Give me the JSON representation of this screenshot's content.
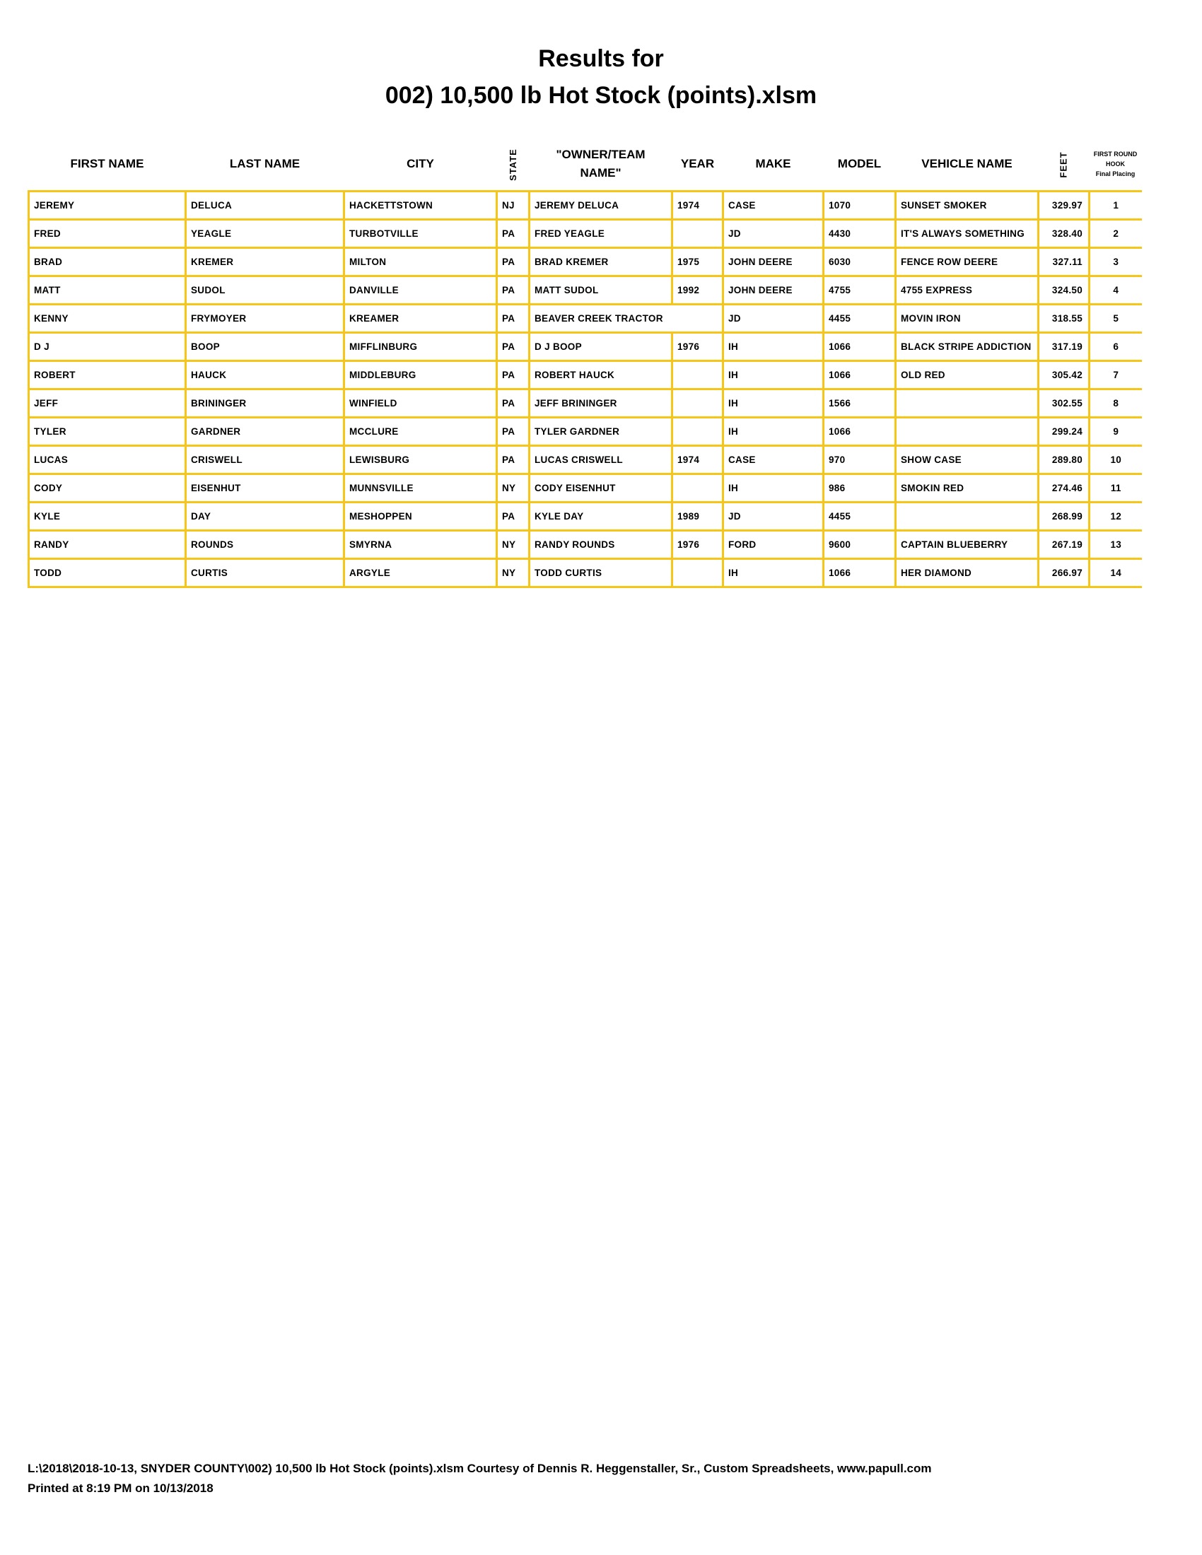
{
  "title_line1": "Results for",
  "title_line2": "002) 10,500 lb Hot Stock (points).xlsm",
  "columns": {
    "first": "FIRST NAME",
    "last": "LAST NAME",
    "city": "CITY",
    "state": "STATE",
    "owner_l1": "\"OWNER/TEAM",
    "owner_l2": "NAME\"",
    "year": "YEAR",
    "make": "MAKE",
    "model": "MODEL",
    "vehicle": "VEHICLE NAME",
    "feet": "FEET",
    "place_l1": "FIRST ROUND",
    "place_l2": "HOOK",
    "place_l3": "Final Placing"
  },
  "rows": [
    {
      "first": "JEREMY",
      "last": "DELUCA",
      "city": "HACKETTSTOWN",
      "state": "NJ",
      "owner": "JEREMY DELUCA",
      "year": "1974",
      "make": "CASE",
      "model": "1070",
      "vehicle": "SUNSET SMOKER",
      "feet": "329.97",
      "place": "1"
    },
    {
      "first": "FRED",
      "last": "YEAGLE",
      "city": "TURBOTVILLE",
      "state": "PA",
      "owner": "FRED YEAGLE",
      "year": "",
      "make": "JD",
      "model": "4430",
      "vehicle": "IT'S ALWAYS SOMETHING",
      "feet": "328.40",
      "place": "2"
    },
    {
      "first": "BRAD",
      "last": "KREMER",
      "city": "MILTON",
      "state": "PA",
      "owner": "BRAD KREMER",
      "year": "1975",
      "make": "JOHN DEERE",
      "model": "6030",
      "vehicle": "FENCE ROW DEERE",
      "feet": "327.11",
      "place": "3"
    },
    {
      "first": "MATT",
      "last": "SUDOL",
      "city": "DANVILLE",
      "state": "PA",
      "owner": "MATT SUDOL",
      "year": "1992",
      "make": "JOHN DEERE",
      "model": "4755",
      "vehicle": "4755 EXPRESS",
      "feet": "324.50",
      "place": "4"
    },
    {
      "first": "KENNY",
      "last": "FRYMOYER",
      "city": "KREAMER",
      "state": "PA",
      "owner": "BEAVER CREEK TRACTOR",
      "year": "",
      "make": "JD",
      "model": "4455",
      "vehicle": "MOVIN IRON",
      "feet": "318.55",
      "place": "5"
    },
    {
      "first": "D J",
      "last": "BOOP",
      "city": "MIFFLINBURG",
      "state": "PA",
      "owner": "D J BOOP",
      "year": "1976",
      "make": "IH",
      "model": "1066",
      "vehicle": "BLACK STRIPE ADDICTION",
      "feet": "317.19",
      "place": "6"
    },
    {
      "first": "ROBERT",
      "last": "HAUCK",
      "city": "MIDDLEBURG",
      "state": "PA",
      "owner": "ROBERT HAUCK",
      "year": "",
      "make": "IH",
      "model": "1066",
      "vehicle": "OLD RED",
      "feet": "305.42",
      "place": "7"
    },
    {
      "first": "JEFF",
      "last": "BRININGER",
      "city": "WINFIELD",
      "state": "PA",
      "owner": "JEFF BRININGER",
      "year": "",
      "make": "IH",
      "model": "1566",
      "vehicle": "",
      "feet": "302.55",
      "place": "8"
    },
    {
      "first": "TYLER",
      "last": "GARDNER",
      "city": "MCCLURE",
      "state": "PA",
      "owner": "TYLER GARDNER",
      "year": "",
      "make": "IH",
      "model": "1066",
      "vehicle": "",
      "feet": "299.24",
      "place": "9"
    },
    {
      "first": "LUCAS",
      "last": "CRISWELL",
      "city": "LEWISBURG",
      "state": "PA",
      "owner": "LUCAS CRISWELL",
      "year": "1974",
      "make": "CASE",
      "model": "970",
      "vehicle": "SHOW CASE",
      "feet": "289.80",
      "place": "10"
    },
    {
      "first": "CODY",
      "last": "EISENHUT",
      "city": "MUNNSVILLE",
      "state": "NY",
      "owner": "CODY EISENHUT",
      "year": "",
      "make": "IH",
      "model": "986",
      "vehicle": "SMOKIN RED",
      "feet": "274.46",
      "place": "11"
    },
    {
      "first": "KYLE",
      "last": "DAY",
      "city": "MESHOPPEN",
      "state": "PA",
      "owner": "KYLE DAY",
      "year": "1989",
      "make": "JD",
      "model": "4455",
      "vehicle": "",
      "feet": "268.99",
      "place": "12"
    },
    {
      "first": "RANDY",
      "last": "ROUNDS",
      "city": "SMYRNA",
      "state": "NY",
      "owner": "RANDY ROUNDS",
      "year": "1976",
      "make": "FORD",
      "model": "9600",
      "vehicle": "CAPTAIN BLUEBERRY",
      "feet": "267.19",
      "place": "13"
    },
    {
      "first": "TODD",
      "last": "CURTIS",
      "city": "ARGYLE",
      "state": "NY",
      "owner": "TODD CURTIS",
      "year": "",
      "make": "IH",
      "model": "1066",
      "vehicle": "HER DIAMOND",
      "feet": "266.97",
      "place": "14"
    }
  ],
  "footer_line1": "L:\\2018\\2018-10-13, SNYDER COUNTY\\002) 10,500 lb Hot Stock (points).xlsm  Courtesy of Dennis R. Heggenstaller, Sr., Custom Spreadsheets, www.papull.com",
  "footer_line2": "Printed at 8:19 PM on 10/13/2018",
  "colors": {
    "grid": "#f5c518"
  }
}
